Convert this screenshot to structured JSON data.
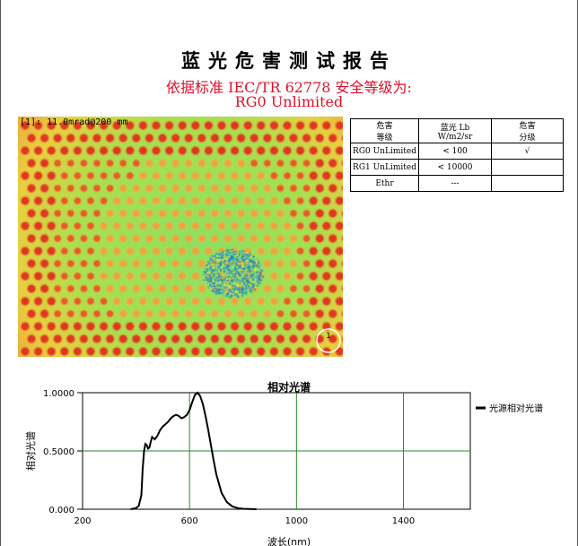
{
  "report": {
    "title": "蓝光危害测试报告",
    "standard_line": "依据标准 IEC/TR 62778 安全等级为:",
    "result_line": "RG0 Unlimited"
  },
  "heatmap": {
    "label": "[1]:  11.0mrad@200 mm",
    "marker": "1",
    "colors": {
      "background": "#7cd86a",
      "edge": "#f0a040",
      "spot": "#e83020",
      "center": "#2ab0a0"
    }
  },
  "hazard_table": {
    "header": [
      [
        "危害",
        "等级"
      ],
      [
        "蓝光 Lb",
        "W/m2/sr"
      ],
      [
        "危害",
        "分级"
      ]
    ],
    "rows": [
      [
        "RG0 UnLimited",
        "< 100",
        "√"
      ],
      [
        "RG1 UnLimited",
        "< 10000",
        ""
      ],
      [
        "Ethr",
        "---",
        ""
      ]
    ]
  },
  "chart_data": {
    "type": "line",
    "title": "相对光谱",
    "xlabel": "波长(nm)",
    "ylabel": "相对光谱",
    "xlim": [
      200,
      1650
    ],
    "ylim": [
      0,
      1
    ],
    "x_ticks": [
      "200",
      "600",
      "1000",
      "1400"
    ],
    "y_ticks": [
      "0.000",
      "0.5000",
      "1.0000"
    ],
    "grid": true,
    "legend_position": "right",
    "series": [
      {
        "name": "光源相对光谱",
        "color": "#000000",
        "x": [
          380,
          400,
          410,
          420,
          425,
          430,
          435,
          440,
          445,
          450,
          455,
          460,
          465,
          470,
          480,
          490,
          500,
          510,
          520,
          530,
          540,
          550,
          560,
          570,
          580,
          590,
          600,
          610,
          620,
          630,
          640,
          650,
          660,
          670,
          680,
          690,
          700,
          720,
          740,
          760,
          780,
          800,
          850
        ],
        "y": [
          0,
          0.01,
          0.03,
          0.12,
          0.35,
          0.5,
          0.56,
          0.55,
          0.52,
          0.53,
          0.58,
          0.62,
          0.61,
          0.6,
          0.63,
          0.68,
          0.71,
          0.73,
          0.75,
          0.78,
          0.8,
          0.81,
          0.8,
          0.78,
          0.79,
          0.81,
          0.85,
          0.92,
          0.98,
          1.0,
          0.97,
          0.9,
          0.8,
          0.68,
          0.55,
          0.42,
          0.3,
          0.14,
          0.06,
          0.025,
          0.01,
          0.004,
          0
        ]
      }
    ]
  }
}
